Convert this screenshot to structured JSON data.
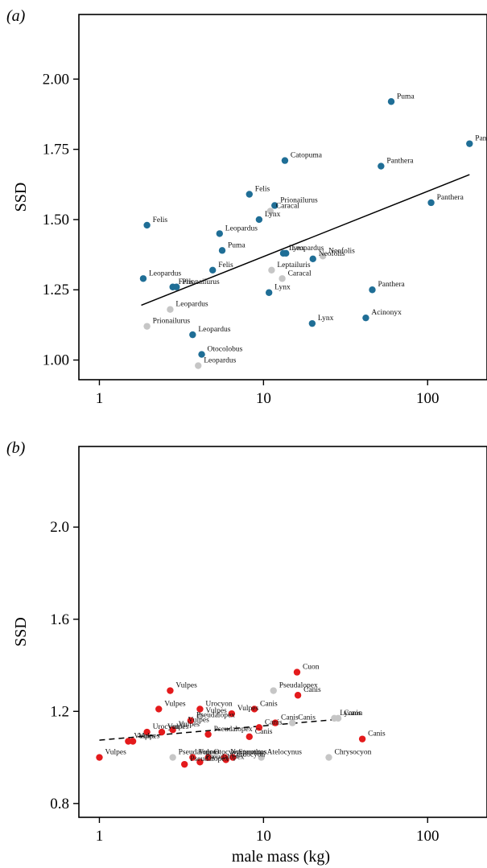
{
  "figure": {
    "colors": {
      "blue": "#1f6e96",
      "grey": "#c6c6c6",
      "red": "#e41a1c",
      "axis": "#000000"
    }
  },
  "chart_data": [
    {
      "type": "scatter",
      "panel_label": "(a)",
      "title": "",
      "xlabel": "",
      "ylabel": "SSD",
      "x_scale": "log",
      "xlim": [
        0.75,
        230
      ],
      "ylim": [
        0.93,
        2.23
      ],
      "x_ticks": [
        1,
        10,
        100
      ],
      "x_tick_labels": [
        "1",
        "10",
        "100"
      ],
      "y_ticks": [
        1.0,
        1.25,
        1.5,
        1.75,
        2.0
      ],
      "y_tick_labels": [
        "1.00",
        "1.25",
        "1.50",
        "1.75",
        "2.00"
      ],
      "grid": false,
      "fit_line": {
        "style": "solid",
        "x": [
          1.8,
          180
        ],
        "y": [
          1.195,
          1.66
        ]
      },
      "points": [
        {
          "label": "Puma",
          "x": 60,
          "y": 1.92,
          "color": "blue"
        },
        {
          "label": "Panthera",
          "x": 180,
          "y": 1.77,
          "color": "blue"
        },
        {
          "label": "Catopuma",
          "x": 13.5,
          "y": 1.71,
          "color": "blue"
        },
        {
          "label": "Panthera",
          "x": 52,
          "y": 1.69,
          "color": "blue"
        },
        {
          "label": "Felis",
          "x": 8.2,
          "y": 1.59,
          "color": "blue"
        },
        {
          "label": "Panthera",
          "x": 105,
          "y": 1.56,
          "color": "blue"
        },
        {
          "label": "Prionailurus",
          "x": 11.7,
          "y": 1.55,
          "color": "blue"
        },
        {
          "label": "Caracal",
          "x": 11,
          "y": 1.53,
          "color": "grey"
        },
        {
          "label": "Lynx",
          "x": 9.4,
          "y": 1.5,
          "color": "blue"
        },
        {
          "label": "Felis",
          "x": 1.95,
          "y": 1.48,
          "color": "blue"
        },
        {
          "label": "Leopardus",
          "x": 5.4,
          "y": 1.45,
          "color": "blue"
        },
        {
          "label": "Puma",
          "x": 5.6,
          "y": 1.39,
          "color": "blue"
        },
        {
          "label": "Leopardus",
          "x": 13.7,
          "y": 1.38,
          "color": "blue"
        },
        {
          "label": "Lynx",
          "x": 13.2,
          "y": 1.38,
          "color": "blue"
        },
        {
          "label": "Neofolis",
          "x": 23,
          "y": 1.37,
          "color": "grey"
        },
        {
          "label": "Neofolis",
          "x": 20,
          "y": 1.36,
          "color": "blue"
        },
        {
          "label": "Felis",
          "x": 4.9,
          "y": 1.32,
          "color": "blue"
        },
        {
          "label": "Leptailuris",
          "x": 11.2,
          "y": 1.32,
          "color": "grey"
        },
        {
          "label": "Leopardus",
          "x": 1.85,
          "y": 1.29,
          "color": "blue"
        },
        {
          "label": "Caracal",
          "x": 13,
          "y": 1.29,
          "color": "grey"
        },
        {
          "label": "Felis",
          "x": 2.8,
          "y": 1.26,
          "color": "blue"
        },
        {
          "label": "Prionailurus",
          "x": 2.95,
          "y": 1.26,
          "color": "blue"
        },
        {
          "label": "Panthera",
          "x": 46,
          "y": 1.25,
          "color": "blue"
        },
        {
          "label": "Lynx",
          "x": 10.8,
          "y": 1.24,
          "color": "blue"
        },
        {
          "label": "Leopardus",
          "x": 2.7,
          "y": 1.18,
          "color": "grey"
        },
        {
          "label": "Acinonyx",
          "x": 42,
          "y": 1.15,
          "color": "blue"
        },
        {
          "label": "Lynx",
          "x": 19.8,
          "y": 1.13,
          "color": "blue"
        },
        {
          "label": "Prionailurus",
          "x": 1.95,
          "y": 1.12,
          "color": "grey"
        },
        {
          "label": "Leopardus",
          "x": 3.7,
          "y": 1.09,
          "color": "blue"
        },
        {
          "label": "Otocolobus",
          "x": 4.2,
          "y": 1.02,
          "color": "blue"
        },
        {
          "label": "Leopardus",
          "x": 4,
          "y": 0.98,
          "color": "grey"
        }
      ]
    },
    {
      "type": "scatter",
      "panel_label": "(b)",
      "title": "",
      "xlabel": "male mass (kg)",
      "ylabel": "SSD",
      "x_scale": "log",
      "xlim": [
        0.75,
        230
      ],
      "ylim": [
        0.74,
        2.35
      ],
      "x_ticks": [
        1,
        10,
        100
      ],
      "x_tick_labels": [
        "1",
        "10",
        "100"
      ],
      "y_ticks": [
        0.8,
        1.2,
        1.6,
        2.0
      ],
      "y_tick_labels": [
        "0.8",
        "1.2",
        "1.6",
        "2.0"
      ],
      "grid": false,
      "fit_line": {
        "style": "dashed",
        "x": [
          1,
          28
        ],
        "y": [
          1.075,
          1.165
        ]
      },
      "points": [
        {
          "label": "Cuon",
          "x": 16,
          "y": 1.37,
          "color": "red"
        },
        {
          "label": "Vulpes",
          "x": 2.7,
          "y": 1.29,
          "color": "red"
        },
        {
          "label": "Pseudalopex",
          "x": 11.5,
          "y": 1.29,
          "color": "grey"
        },
        {
          "label": "Canis",
          "x": 16.2,
          "y": 1.27,
          "color": "red"
        },
        {
          "label": "Vulpes",
          "x": 2.3,
          "y": 1.21,
          "color": "red"
        },
        {
          "label": "Urocyon",
          "x": 4.1,
          "y": 1.21,
          "color": "red"
        },
        {
          "label": "Canis",
          "x": 8.8,
          "y": 1.21,
          "color": "red"
        },
        {
          "label": "Vulpes",
          "x": 6.4,
          "y": 1.19,
          "color": "red"
        },
        {
          "label": "Vulpes",
          "x": 4.1,
          "y": 1.18,
          "color": "grey"
        },
        {
          "label": "Lycaon",
          "x": 27,
          "y": 1.17,
          "color": "grey"
        },
        {
          "label": "Canis",
          "x": 28.5,
          "y": 1.17,
          "color": "grey"
        },
        {
          "label": "Pseudalopex",
          "x": 3.6,
          "y": 1.16,
          "color": "red"
        },
        {
          "label": "Canis",
          "x": 11.8,
          "y": 1.15,
          "color": "red"
        },
        {
          "label": "Canis",
          "x": 15,
          "y": 1.15,
          "color": "grey"
        },
        {
          "label": "Vulpes",
          "x": 3.2,
          "y": 1.14,
          "color": "grey"
        },
        {
          "label": "Canis",
          "x": 9.4,
          "y": 1.13,
          "color": "red"
        },
        {
          "label": "Vulpes",
          "x": 2.8,
          "y": 1.12,
          "color": "red"
        },
        {
          "label": "Urocyon",
          "x": 1.95,
          "y": 1.11,
          "color": "red"
        },
        {
          "label": "Vulpes",
          "x": 2.4,
          "y": 1.11,
          "color": "red"
        },
        {
          "label": "Pseudalopex",
          "x": 4.6,
          "y": 1.1,
          "color": "red"
        },
        {
          "label": "Canis",
          "x": 8.2,
          "y": 1.09,
          "color": "red"
        },
        {
          "label": "Canis",
          "x": 40,
          "y": 1.08,
          "color": "red"
        },
        {
          "label": "Vulpes",
          "x": 1.5,
          "y": 1.07,
          "color": "red"
        },
        {
          "label": "Vulpes",
          "x": 1.6,
          "y": 1.07,
          "color": "red"
        },
        {
          "label": "Vulpes",
          "x": 1.0,
          "y": 1.0,
          "color": "red"
        },
        {
          "label": "Pseudalopex",
          "x": 2.8,
          "y": 1.0,
          "color": "grey"
        },
        {
          "label": "Vulpes",
          "x": 3.7,
          "y": 1.0,
          "color": "red"
        },
        {
          "label": "Otocyon",
          "x": 4.6,
          "y": 1.0,
          "color": "red"
        },
        {
          "label": "Nyctereutes",
          "x": 5.8,
          "y": 1.0,
          "color": "red"
        },
        {
          "label": "Speothos",
          "x": 6.5,
          "y": 1.0,
          "color": "red"
        },
        {
          "label": "Atelocynus",
          "x": 9.7,
          "y": 1.0,
          "color": "grey"
        },
        {
          "label": "Chrysocyon",
          "x": 25,
          "y": 1.0,
          "color": "grey"
        },
        {
          "label": "Cerdocyon",
          "x": 5.9,
          "y": 0.99,
          "color": "red"
        },
        {
          "label": "Pseudalopex",
          "x": 4.1,
          "y": 0.98,
          "color": "red"
        },
        {
          "label": "Pseudalopex",
          "x": 3.3,
          "y": 0.97,
          "color": "red"
        }
      ]
    }
  ]
}
